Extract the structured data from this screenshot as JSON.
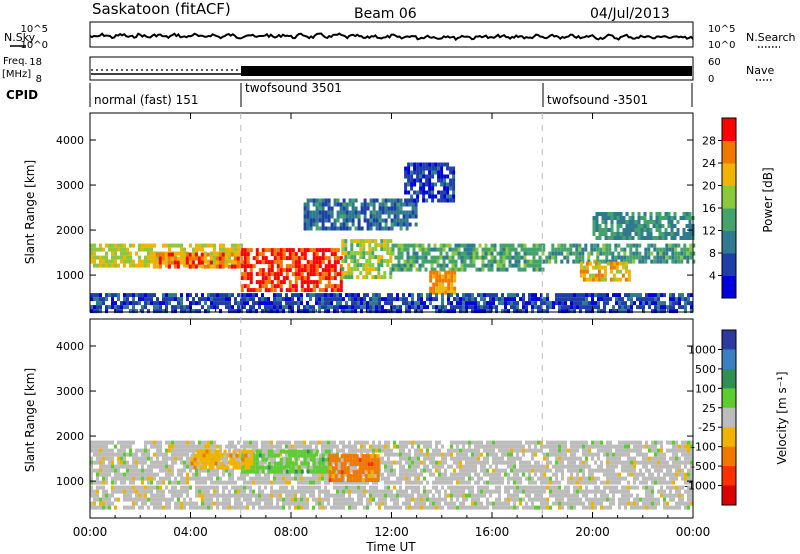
{
  "header": {
    "station": "Saskatoon (fitACF)",
    "beam": "Beam 06",
    "date": "04/Jul/2013"
  },
  "left_labels": {
    "nsky": "N.Sky",
    "freq_line1": "Freq.",
    "freq_line2": "[MHz]",
    "cpid": "CPID"
  },
  "right_labels": {
    "nsearch": "N.Search",
    "nave": "Nave"
  },
  "noise_axis": {
    "left_ticks": [
      "10^5",
      "10^0"
    ],
    "right_ticks": [
      "10^5",
      "10^0"
    ]
  },
  "freq_axis": {
    "left_ticks": [
      "18",
      "8"
    ],
    "right_ticks": [
      "60",
      "0"
    ]
  },
  "cpid_segments": [
    {
      "label": "normal (fast) 151",
      "start": "00:00",
      "end": "06:00"
    },
    {
      "label": "twofsound 3501",
      "start": "06:00",
      "end": "18:00"
    },
    {
      "label": "twofsound -3501",
      "start": "18:00",
      "end": "24:00"
    }
  ],
  "chart_data": [
    {
      "type": "heatmap",
      "panel": "power",
      "xlabel": "Time UT",
      "ylabel": "Slant Range [km]",
      "x_ticks": [
        "00:00",
        "04:00",
        "08:00",
        "12:00",
        "16:00",
        "20:00",
        "00:00"
      ],
      "xlim_hours": [
        0,
        24
      ],
      "y_ticks": [
        1000,
        2000,
        3000,
        4000
      ],
      "ylim": [
        180,
        4600
      ],
      "colorbar": {
        "label": "Power [dB]",
        "ticks": [
          4,
          8,
          12,
          16,
          20,
          24,
          28
        ],
        "range": [
          0,
          32
        ],
        "colors": [
          "#0000dd",
          "#1e3ea8",
          "#2f7a8e",
          "#44a36a",
          "#8cc83c",
          "#f0b400",
          "#f07800",
          "#ff0000"
        ]
      },
      "bands": [
        {
          "start_h": 0.0,
          "end_h": 6.0,
          "range_min": 1200,
          "range_max": 1700,
          "level": 20
        },
        {
          "start_h": 2.5,
          "end_h": 6.0,
          "range_min": 1150,
          "range_max": 1500,
          "level": 26
        },
        {
          "start_h": 6.0,
          "end_h": 10.0,
          "range_min": 700,
          "range_max": 1600,
          "level": 29
        },
        {
          "start_h": 10.0,
          "end_h": 12.0,
          "range_min": 1000,
          "range_max": 1800,
          "level": 18
        },
        {
          "start_h": 12.0,
          "end_h": 18.0,
          "range_min": 1100,
          "range_max": 1700,
          "level": 14
        },
        {
          "start_h": 13.5,
          "end_h": 14.5,
          "range_min": 600,
          "range_max": 1100,
          "level": 24
        },
        {
          "start_h": 18.0,
          "end_h": 24.0,
          "range_min": 1300,
          "range_max": 1700,
          "level": 13
        },
        {
          "start_h": 19.5,
          "end_h": 21.5,
          "range_min": 900,
          "range_max": 1300,
          "level": 22
        },
        {
          "start_h": 20.0,
          "end_h": 24.0,
          "range_min": 1800,
          "range_max": 2400,
          "level": 12
        },
        {
          "start_h": 0.0,
          "end_h": 24.0,
          "range_min": 200,
          "range_max": 600,
          "level": 6
        },
        {
          "start_h": 8.5,
          "end_h": 13.0,
          "range_min": 2000,
          "range_max": 2700,
          "level": 9
        },
        {
          "start_h": 12.5,
          "end_h": 14.5,
          "range_min": 2700,
          "range_max": 3500,
          "level": 5
        }
      ]
    },
    {
      "type": "heatmap",
      "panel": "velocity",
      "xlabel": "Time UT",
      "ylabel": "Slant Range [km]",
      "x_ticks": [
        "00:00",
        "04:00",
        "08:00",
        "12:00",
        "16:00",
        "20:00",
        "00:00"
      ],
      "xlim_hours": [
        0,
        24
      ],
      "y_ticks": [
        1000,
        2000,
        3000,
        4000
      ],
      "ylim": [
        180,
        4600
      ],
      "colorbar": {
        "label": "Velocity [m s⁻¹]",
        "ticks": [
          1000,
          500,
          100,
          25,
          -25,
          -100,
          -500,
          -1000
        ],
        "colors": [
          "#2c3aa0",
          "#3a7fc0",
          "#2f8f55",
          "#5ccc30",
          "#bcbcbc",
          "#f0b400",
          "#f07800",
          "#ff3000",
          "#dd0000"
        ]
      },
      "bands": [
        {
          "start_h": 0.0,
          "end_h": 24.0,
          "range_min": 1000,
          "range_max": 1900,
          "class": "ground"
        },
        {
          "start_h": 0.0,
          "end_h": 24.0,
          "range_min": 400,
          "range_max": 900,
          "class": "ground"
        },
        {
          "start_h": 6.0,
          "end_h": 9.5,
          "range_min": 1200,
          "range_max": 1700,
          "class": "positive"
        },
        {
          "start_h": 9.5,
          "end_h": 11.5,
          "range_min": 1000,
          "range_max": 1600,
          "class": "negative"
        },
        {
          "start_h": 4.0,
          "end_h": 6.5,
          "range_min": 1300,
          "range_max": 1700,
          "class": "negative_weak"
        }
      ]
    }
  ],
  "colors": {
    "axes": "#000000",
    "dashed_marker": "#bbbbbb"
  }
}
